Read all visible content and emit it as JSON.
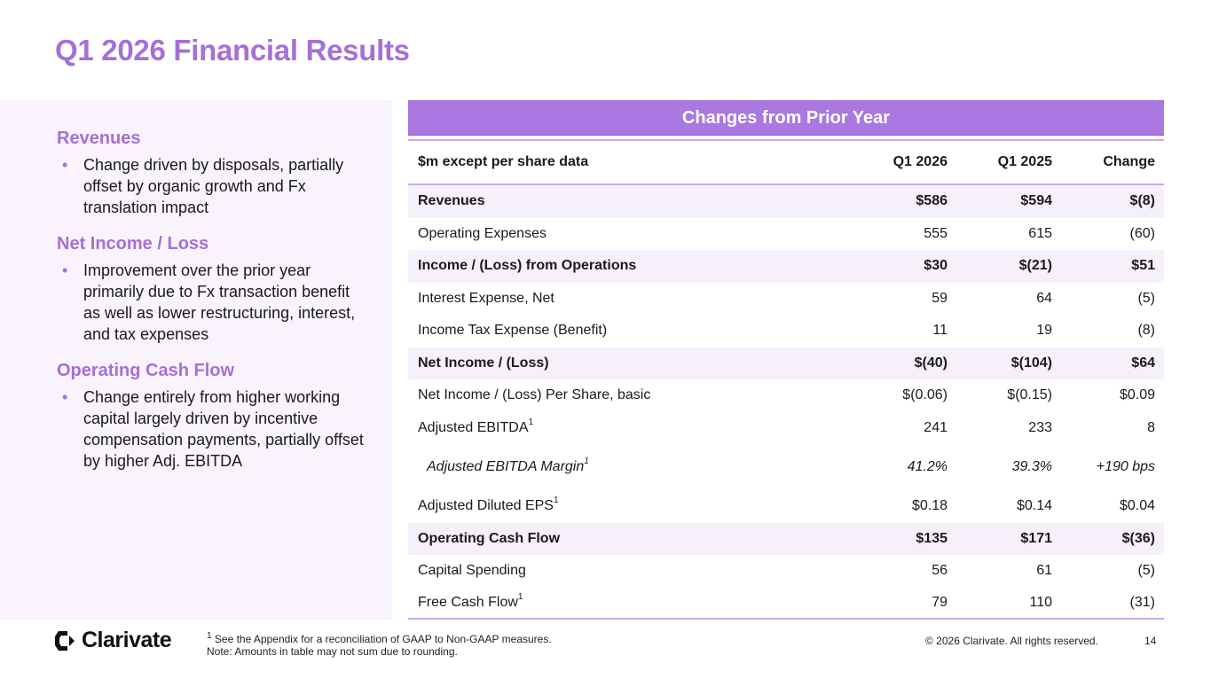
{
  "title": "Q1 2026 Financial Results",
  "left": {
    "sections": [
      {
        "heading": "Revenues",
        "bullet": "Change driven by disposals, partially offset by organic growth and Fx translation impact"
      },
      {
        "heading": "Net Income / Loss",
        "bullet": "Improvement over the prior year primarily due to Fx transaction benefit as well as lower restructuring, interest, and tax expenses"
      },
      {
        "heading": "Operating Cash Flow",
        "bullet": "Change entirely from higher working capital largely driven by incentive compensation payments, partially offset by higher Adj. EBITDA"
      }
    ],
    "bullet_glyph": "•"
  },
  "table": {
    "header": "Changes from Prior Year",
    "columns": [
      "$m except per share data",
      "Q1 2026",
      "Q1 2025",
      "Change"
    ],
    "rows": [
      {
        "label": "Revenues",
        "sup": "",
        "q1_2026": "$586",
        "q1_2025": "$594",
        "change": "$(8)",
        "style": "bold shade"
      },
      {
        "label": "Operating Expenses",
        "sup": "",
        "q1_2026": "555",
        "q1_2025": "615",
        "change": "(60)",
        "style": ""
      },
      {
        "label": "Income / (Loss) from Operations",
        "sup": "",
        "q1_2026": "$30",
        "q1_2025": "$(21)",
        "change": "$51",
        "style": "bold shade"
      },
      {
        "label": "Interest Expense, Net",
        "sup": "",
        "q1_2026": "59",
        "q1_2025": "64",
        "change": "(5)",
        "style": ""
      },
      {
        "label": "Income Tax Expense (Benefit)",
        "sup": "",
        "q1_2026": "11",
        "q1_2025": "19",
        "change": "(8)",
        "style": ""
      },
      {
        "label": "Net Income / (Loss)",
        "sup": "",
        "q1_2026": "$(40)",
        "q1_2025": "$(104)",
        "change": "$64",
        "style": "bold shade"
      },
      {
        "label": "Net Income / (Loss) Per Share, basic",
        "sup": "",
        "q1_2026": "$(0.06)",
        "q1_2025": "$(0.15)",
        "change": "$0.09",
        "style": ""
      },
      {
        "label": "Adjusted EBITDA",
        "sup": "1",
        "q1_2026": "241",
        "q1_2025": "233",
        "change": "8",
        "style": ""
      },
      {
        "label": "Adjusted EBITDA Margin",
        "sup": "1",
        "q1_2026": "41.2%",
        "q1_2025": "39.3%",
        "change": "+190 bps",
        "style": "italic tall"
      },
      {
        "label": "Adjusted Diluted EPS",
        "sup": "1",
        "q1_2026": "$0.18",
        "q1_2025": "$0.14",
        "change": "$0.04",
        "style": ""
      },
      {
        "label": "Operating Cash Flow",
        "sup": "",
        "q1_2026": "$135",
        "q1_2025": "$171",
        "change": "$(36)",
        "style": "bold shade"
      },
      {
        "label": "Capital Spending",
        "sup": "",
        "q1_2026": "56",
        "q1_2025": "61",
        "change": "(5)",
        "style": ""
      },
      {
        "label": "Free Cash Flow",
        "sup": "1",
        "q1_2026": "79",
        "q1_2025": "110",
        "change": "(31)",
        "style": "last"
      }
    ]
  },
  "footer": {
    "logo_text": "Clarivate",
    "footnote_sup": "1",
    "footnote_line1": " See the Appendix for a reconciliation of GAAP to Non-GAAP measures.",
    "footnote_line2": "Note: Amounts in table may not sum due to rounding.",
    "copyright": "© 2026 Clarivate. All rights reserved.",
    "page_number": "14"
  },
  "colors": {
    "accent": "#a66fd6",
    "table_header": "#a978e0",
    "row_shade": "#f6f0fb",
    "panel_bg": "#f8f3fc"
  }
}
